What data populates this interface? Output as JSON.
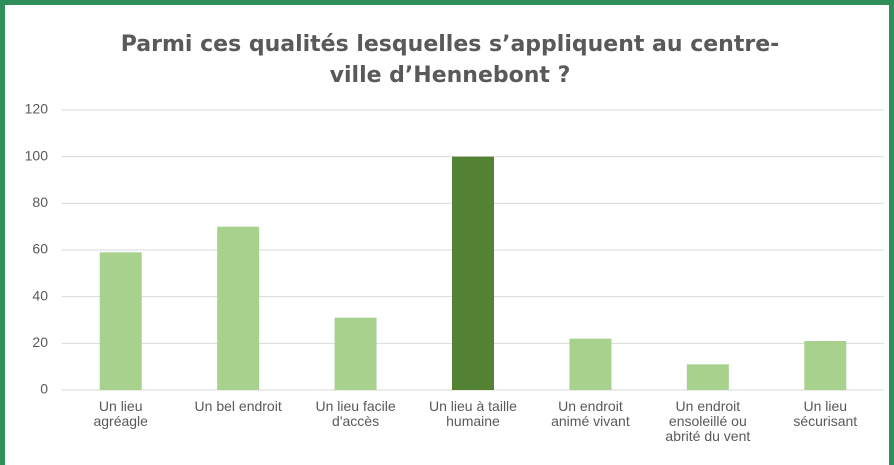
{
  "chart_data": {
    "type": "bar",
    "title": "Parmi ces qualités lesquelles s’appliquent au centre-ville d’Hennebont ?",
    "categories": [
      "Un lieu agréagle",
      "Un bel endroit",
      "Un lieu facile d'accès",
      "Un lieu à taille humaine",
      "Un endroit animé vivant",
      "Un endroit ensoleillé ou abrité du vent",
      "Un lieu sécurisant"
    ],
    "values": [
      59,
      70,
      31,
      100,
      22,
      11,
      21
    ],
    "colors": [
      "#a9d18e",
      "#a9d18e",
      "#a9d18e",
      "#548235",
      "#a9d18e",
      "#a9d18e",
      "#a9d18e"
    ],
    "ylim": [
      0,
      120
    ],
    "yticks": [
      0,
      20,
      40,
      60,
      80,
      100,
      120
    ],
    "grid": true
  }
}
